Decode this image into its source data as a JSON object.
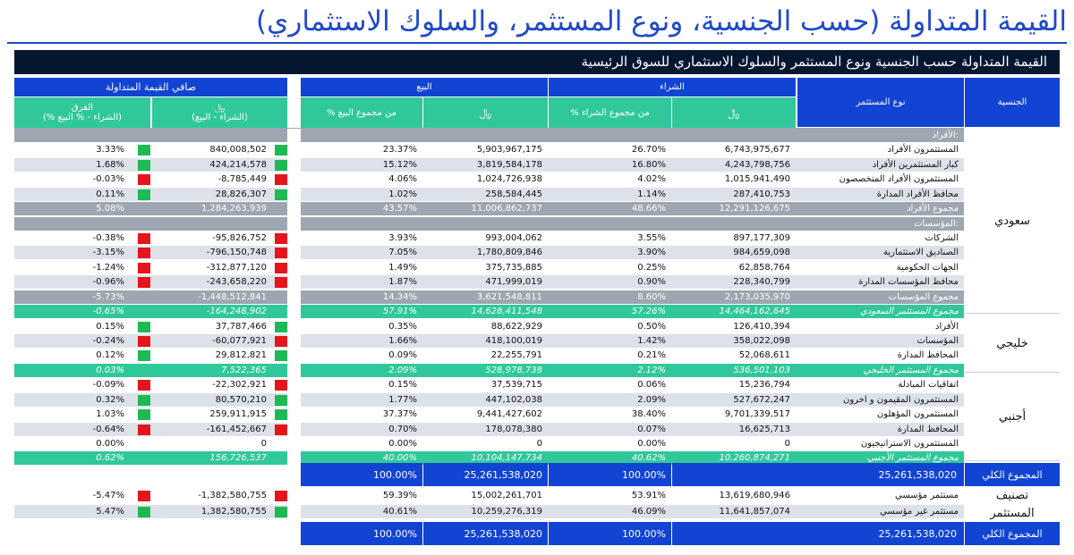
{
  "page_title": "القيمة المتداولة (حسب الجنسية، ونوع المستثمر، والسلوك الاستثماري)",
  "banner": "القيمة المتداولة حسب الجنسية ونوع المستثمر والسلوك الاستثماري للسوق الرئيسية",
  "headers": {
    "nationality": "الجنسية",
    "investor_type": "نوع المستثمر",
    "buy": "الشراء",
    "sell": "البيع",
    "net": "صافي القيمة المتداولة",
    "currency": "﷼",
    "pct_buy": "% من مجموع الشراء",
    "pct_sell": "% من مجموع البيع",
    "net_sub": "(الشراء - البيع)",
    "diff": "الفرق",
    "diff_sub": "(% الشراء - % البيع)"
  },
  "nationalities": {
    "saudi": "سعودي",
    "gulf": "خليجي",
    "foreign": "أجنبي"
  },
  "total_label": "المجموع الكلي",
  "classification_label": "تصنيف المستثمر",
  "rows": [
    {
      "kind": "section",
      "name": "الأفراد:"
    },
    {
      "kind": "data",
      "name": "المستثمرون الأفراد",
      "buy": "6,743,975,677",
      "buy_pct": "26.70%",
      "sell": "5,903,967,175",
      "sell_pct": "23.37%",
      "net": "840,008,502",
      "diff": "3.33%",
      "sign": "g"
    },
    {
      "kind": "data",
      "name": "كبار المستثمرين الأفراد",
      "buy": "4,243,798,756",
      "buy_pct": "16.80%",
      "sell": "3,819,584,178",
      "sell_pct": "15.12%",
      "net": "424,214,578",
      "diff": "1.68%",
      "sign": "g"
    },
    {
      "kind": "data",
      "name": "المستثمرون الأفراد المتخصصون",
      "buy": "1,015,941,490",
      "buy_pct": "4.02%",
      "sell": "1,024,726,938",
      "sell_pct": "4.06%",
      "net": "-8,785,449",
      "diff": "-0.03%",
      "sign": "r"
    },
    {
      "kind": "data",
      "name": "محافظ الأفراد المدارة",
      "buy": "287,410,753",
      "buy_pct": "1.14%",
      "sell": "258,584,445",
      "sell_pct": "1.02%",
      "net": "28,826,307",
      "diff": "0.11%",
      "sign": "g"
    },
    {
      "kind": "subtotal",
      "name": "مجموع الأفراد",
      "buy": "12,291,126,675",
      "buy_pct": "48.66%",
      "sell": "11,006,862,737",
      "sell_pct": "43.57%",
      "net": "1,284,263,939",
      "diff": "5.08%"
    },
    {
      "kind": "section",
      "name": "المؤسسات:"
    },
    {
      "kind": "data",
      "name": "الشركات",
      "buy": "897,177,309",
      "buy_pct": "3.55%",
      "sell": "993,004,062",
      "sell_pct": "3.93%",
      "net": "-95,826,752",
      "diff": "-0.38%",
      "sign": "r"
    },
    {
      "kind": "data",
      "name": "الصناديق الاستثمارية",
      "buy": "984,659,098",
      "buy_pct": "3.90%",
      "sell": "1,780,809,846",
      "sell_pct": "7.05%",
      "net": "-796,150,748",
      "diff": "-3.15%",
      "sign": "r"
    },
    {
      "kind": "data",
      "name": "الجهات الحكومية",
      "buy": "62,858,764",
      "buy_pct": "0.25%",
      "sell": "375,735,885",
      "sell_pct": "1.49%",
      "net": "-312,877,120",
      "diff": "-1.24%",
      "sign": "r"
    },
    {
      "kind": "data",
      "name": "محافظ المؤسسات المدارة",
      "buy": "228,340,799",
      "buy_pct": "0.90%",
      "sell": "471,999,019",
      "sell_pct": "1.87%",
      "net": "-243,658,220",
      "diff": "-0.96%",
      "sign": "r"
    },
    {
      "kind": "subtotal",
      "name": "مجموع المؤسسات",
      "buy": "2,173,035,970",
      "buy_pct": "8.60%",
      "sell": "3,621,548,811",
      "sell_pct": "14.34%",
      "net": "-1,448,512,841",
      "diff": "-5.73%"
    },
    {
      "kind": "grand",
      "name": "مجموع المستثمر السعودي",
      "buy": "14,464,162,645",
      "buy_pct": "57.26%",
      "sell": "14,628,411,548",
      "sell_pct": "57.91%",
      "net": "-164,248,902",
      "diff": "-0.65%"
    },
    {
      "kind": "data",
      "name": "الأفراد",
      "buy": "126,410,394",
      "buy_pct": "0.50%",
      "sell": "88,622,929",
      "sell_pct": "0.35%",
      "net": "37,787,466",
      "diff": "0.15%",
      "sign": "g"
    },
    {
      "kind": "data",
      "name": "المؤسسات",
      "buy": "358,022,098",
      "buy_pct": "1.42%",
      "sell": "418,100,019",
      "sell_pct": "1.66%",
      "net": "-60,077,921",
      "diff": "-0.24%",
      "sign": "r"
    },
    {
      "kind": "data",
      "name": "المحافظ المدارة",
      "buy": "52,068,611",
      "buy_pct": "0.21%",
      "sell": "22,255,791",
      "sell_pct": "0.09%",
      "net": "29,812,821",
      "diff": "0.12%",
      "sign": "g"
    },
    {
      "kind": "grand",
      "name": "مجموع المستثمر الخليجي",
      "buy": "536,501,103",
      "buy_pct": "2.12%",
      "sell": "528,978,738",
      "sell_pct": "2.09%",
      "net": "7,522,365",
      "diff": "0.03%"
    },
    {
      "kind": "data",
      "name": "اتفاقيات المبادلة",
      "buy": "15,236,794",
      "buy_pct": "0.06%",
      "sell": "37,539,715",
      "sell_pct": "0.15%",
      "net": "-22,302,921",
      "diff": "-0.09%",
      "sign": "r"
    },
    {
      "kind": "data",
      "name": "المستثمرون المقيمون و اخرون",
      "buy": "527,672,247",
      "buy_pct": "2.09%",
      "sell": "447,102,038",
      "sell_pct": "1.77%",
      "net": "80,570,210",
      "diff": "0.32%",
      "sign": "g"
    },
    {
      "kind": "data",
      "name": "المستثمرون المؤهلون",
      "buy": "9,701,339,517",
      "buy_pct": "38.40%",
      "sell": "9,441,427,602",
      "sell_pct": "37.37%",
      "net": "259,911,915",
      "diff": "1.03%",
      "sign": "g"
    },
    {
      "kind": "data",
      "name": "المحافظ المدارة",
      "buy": "16,625,713",
      "buy_pct": "0.07%",
      "sell": "178,078,380",
      "sell_pct": "0.70%",
      "net": "-161,452,667",
      "diff": "-0.64%",
      "sign": "r"
    },
    {
      "kind": "data",
      "name": "المستثمرون الاستراتيجيون",
      "buy": "0",
      "buy_pct": "0.00%",
      "sell": "0",
      "sell_pct": "0.00%",
      "net": "0",
      "diff": "0.00%",
      "sign": ""
    },
    {
      "kind": "grand",
      "name": "مجموع المستثمر الأجنبي",
      "buy": "10,260,874,271",
      "buy_pct": "40.62%",
      "sell": "10,104,147,734",
      "sell_pct": "40.00%",
      "net": "156,726,537",
      "diff": "0.62%"
    }
  ],
  "total1": {
    "buy": "25,261,538,020",
    "buy_pct": "100.00%",
    "sell": "25,261,538,020",
    "sell_pct": "100.00%"
  },
  "classification": [
    {
      "name": "مستثمر مؤسسي",
      "buy": "13,619,680,946",
      "buy_pct": "53.91%",
      "sell": "15,002,261,701",
      "sell_pct": "59.39%",
      "net": "-1,382,580,755",
      "diff": "-5.47%",
      "sign": "r"
    },
    {
      "name": "مستثمر غير مؤسسي",
      "buy": "11,641,857,074",
      "buy_pct": "46.09%",
      "sell": "10,259,276,319",
      "sell_pct": "40.61%",
      "net": "1,382,580,755",
      "diff": "5.47%",
      "sign": "g"
    }
  ],
  "total2": {
    "buy": "25,261,538,020",
    "buy_pct": "100.00%",
    "sell": "25,261,538,020",
    "sell_pct": "100.00%"
  },
  "colors": {
    "title": "#1f49c6",
    "banner": "#051730",
    "header_blue": "#1244d3",
    "header_teal": "#30c89a",
    "row_white": "#ffffff",
    "row_light": "#dde2ea",
    "row_gray": "#9ea6b1",
    "row_teal": "#30c89a",
    "sign_green": "#1db954",
    "sign_red": "#e6141b"
  }
}
